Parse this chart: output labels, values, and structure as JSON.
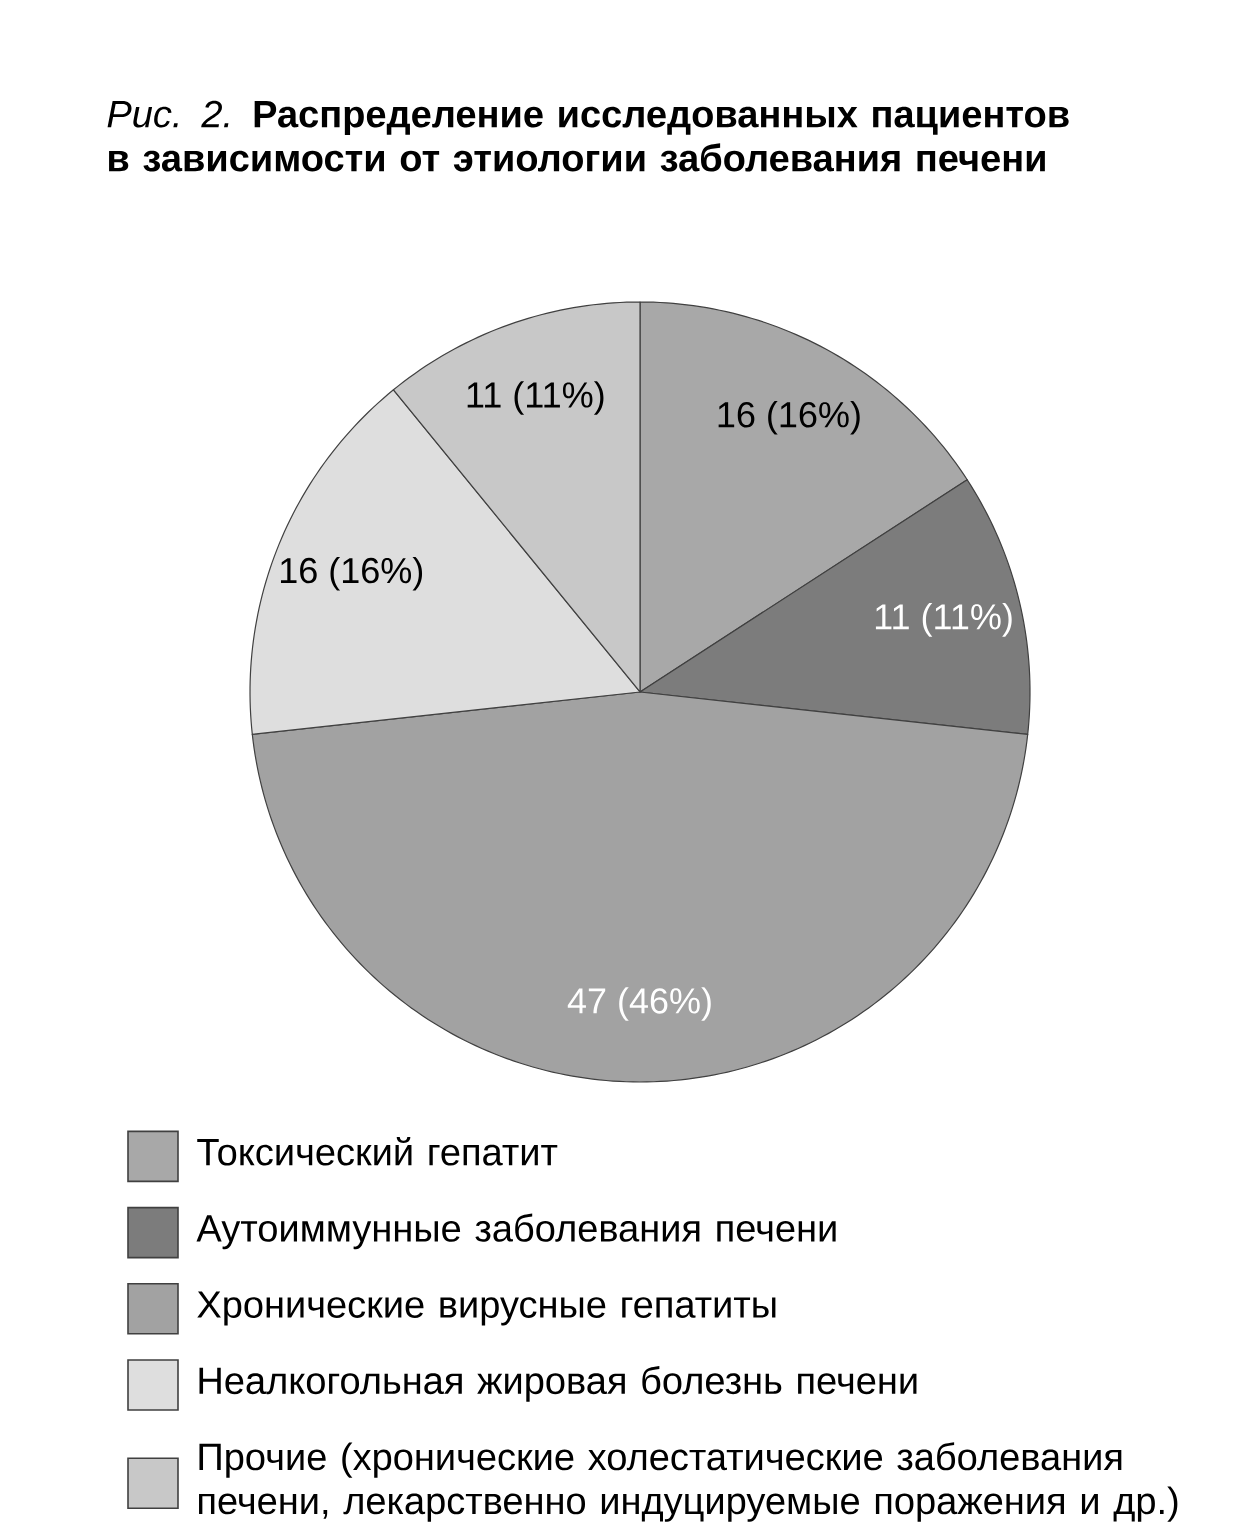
{
  "chart_data": {
    "type": "pie",
    "title": "*Рис. 2.* **Распределение исследованных пациентов в зависимости от этиологии заболевания печени**",
    "categories": [
      "Токсический гепатит",
      "Аутоиммунные заболевания печени",
      "Хронические вирусные гепатиты",
      "Неалкогольная жировая болезнь печени",
      "Прочие (хронические холестатические заболевания печени, лекарственно индуцируемые поражения и др.)"
    ],
    "values": [
      16,
      11,
      47,
      16,
      11
    ],
    "value_labels": [
      "16 (16%)",
      "11 (11%)",
      "47 (46%)",
      "16 (16%)",
      "11 (11%)"
    ],
    "colors": [
      "#a8a8a8",
      "#7c7c7c",
      "#a2a2a2",
      "#dedede",
      "#c8c8c8"
    ],
    "legend": "bottom"
  }
}
